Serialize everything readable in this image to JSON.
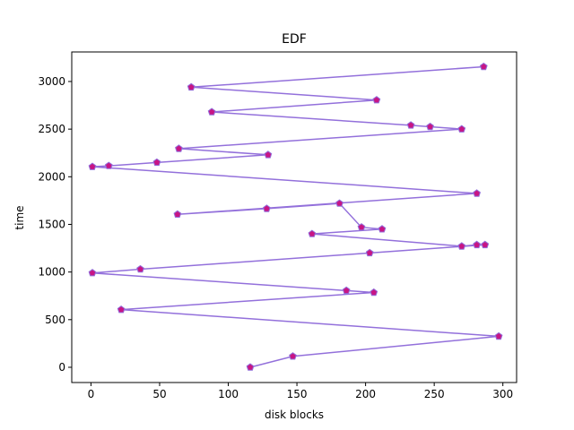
{
  "chart_data": {
    "type": "line",
    "title": "EDF",
    "xlabel": "disk blocks",
    "ylabel": "time",
    "xlim": [
      -14,
      310
    ],
    "ylim": [
      -160,
      3310
    ],
    "xticks": [
      0,
      50,
      100,
      150,
      200,
      250,
      300
    ],
    "yticks": [
      0,
      500,
      1000,
      1500,
      2000,
      2500,
      3000
    ],
    "grid": false,
    "legend": "none",
    "colors": {
      "line": "#9370db",
      "marker_fill": "#c71585",
      "marker_edge": "#9370db"
    },
    "marker": "pentagon",
    "series": [
      {
        "x": [
          116,
          147,
          297,
          22,
          206,
          186,
          1,
          36,
          203,
          287,
          281,
          270,
          161,
          212,
          197,
          181,
          128,
          63,
          281,
          1,
          13,
          48,
          129,
          64,
          270,
          247,
          233,
          88,
          208,
          73,
          286
        ],
        "y": [
          0,
          115,
          325,
          605,
          785,
          805,
          990,
          1030,
          1200,
          1285,
          1285,
          1270,
          1400,
          1450,
          1470,
          1720,
          1665,
          1605,
          1825,
          2105,
          2115,
          2150,
          2230,
          2295,
          2500,
          2525,
          2540,
          2680,
          2805,
          2940,
          3155
        ]
      }
    ]
  }
}
